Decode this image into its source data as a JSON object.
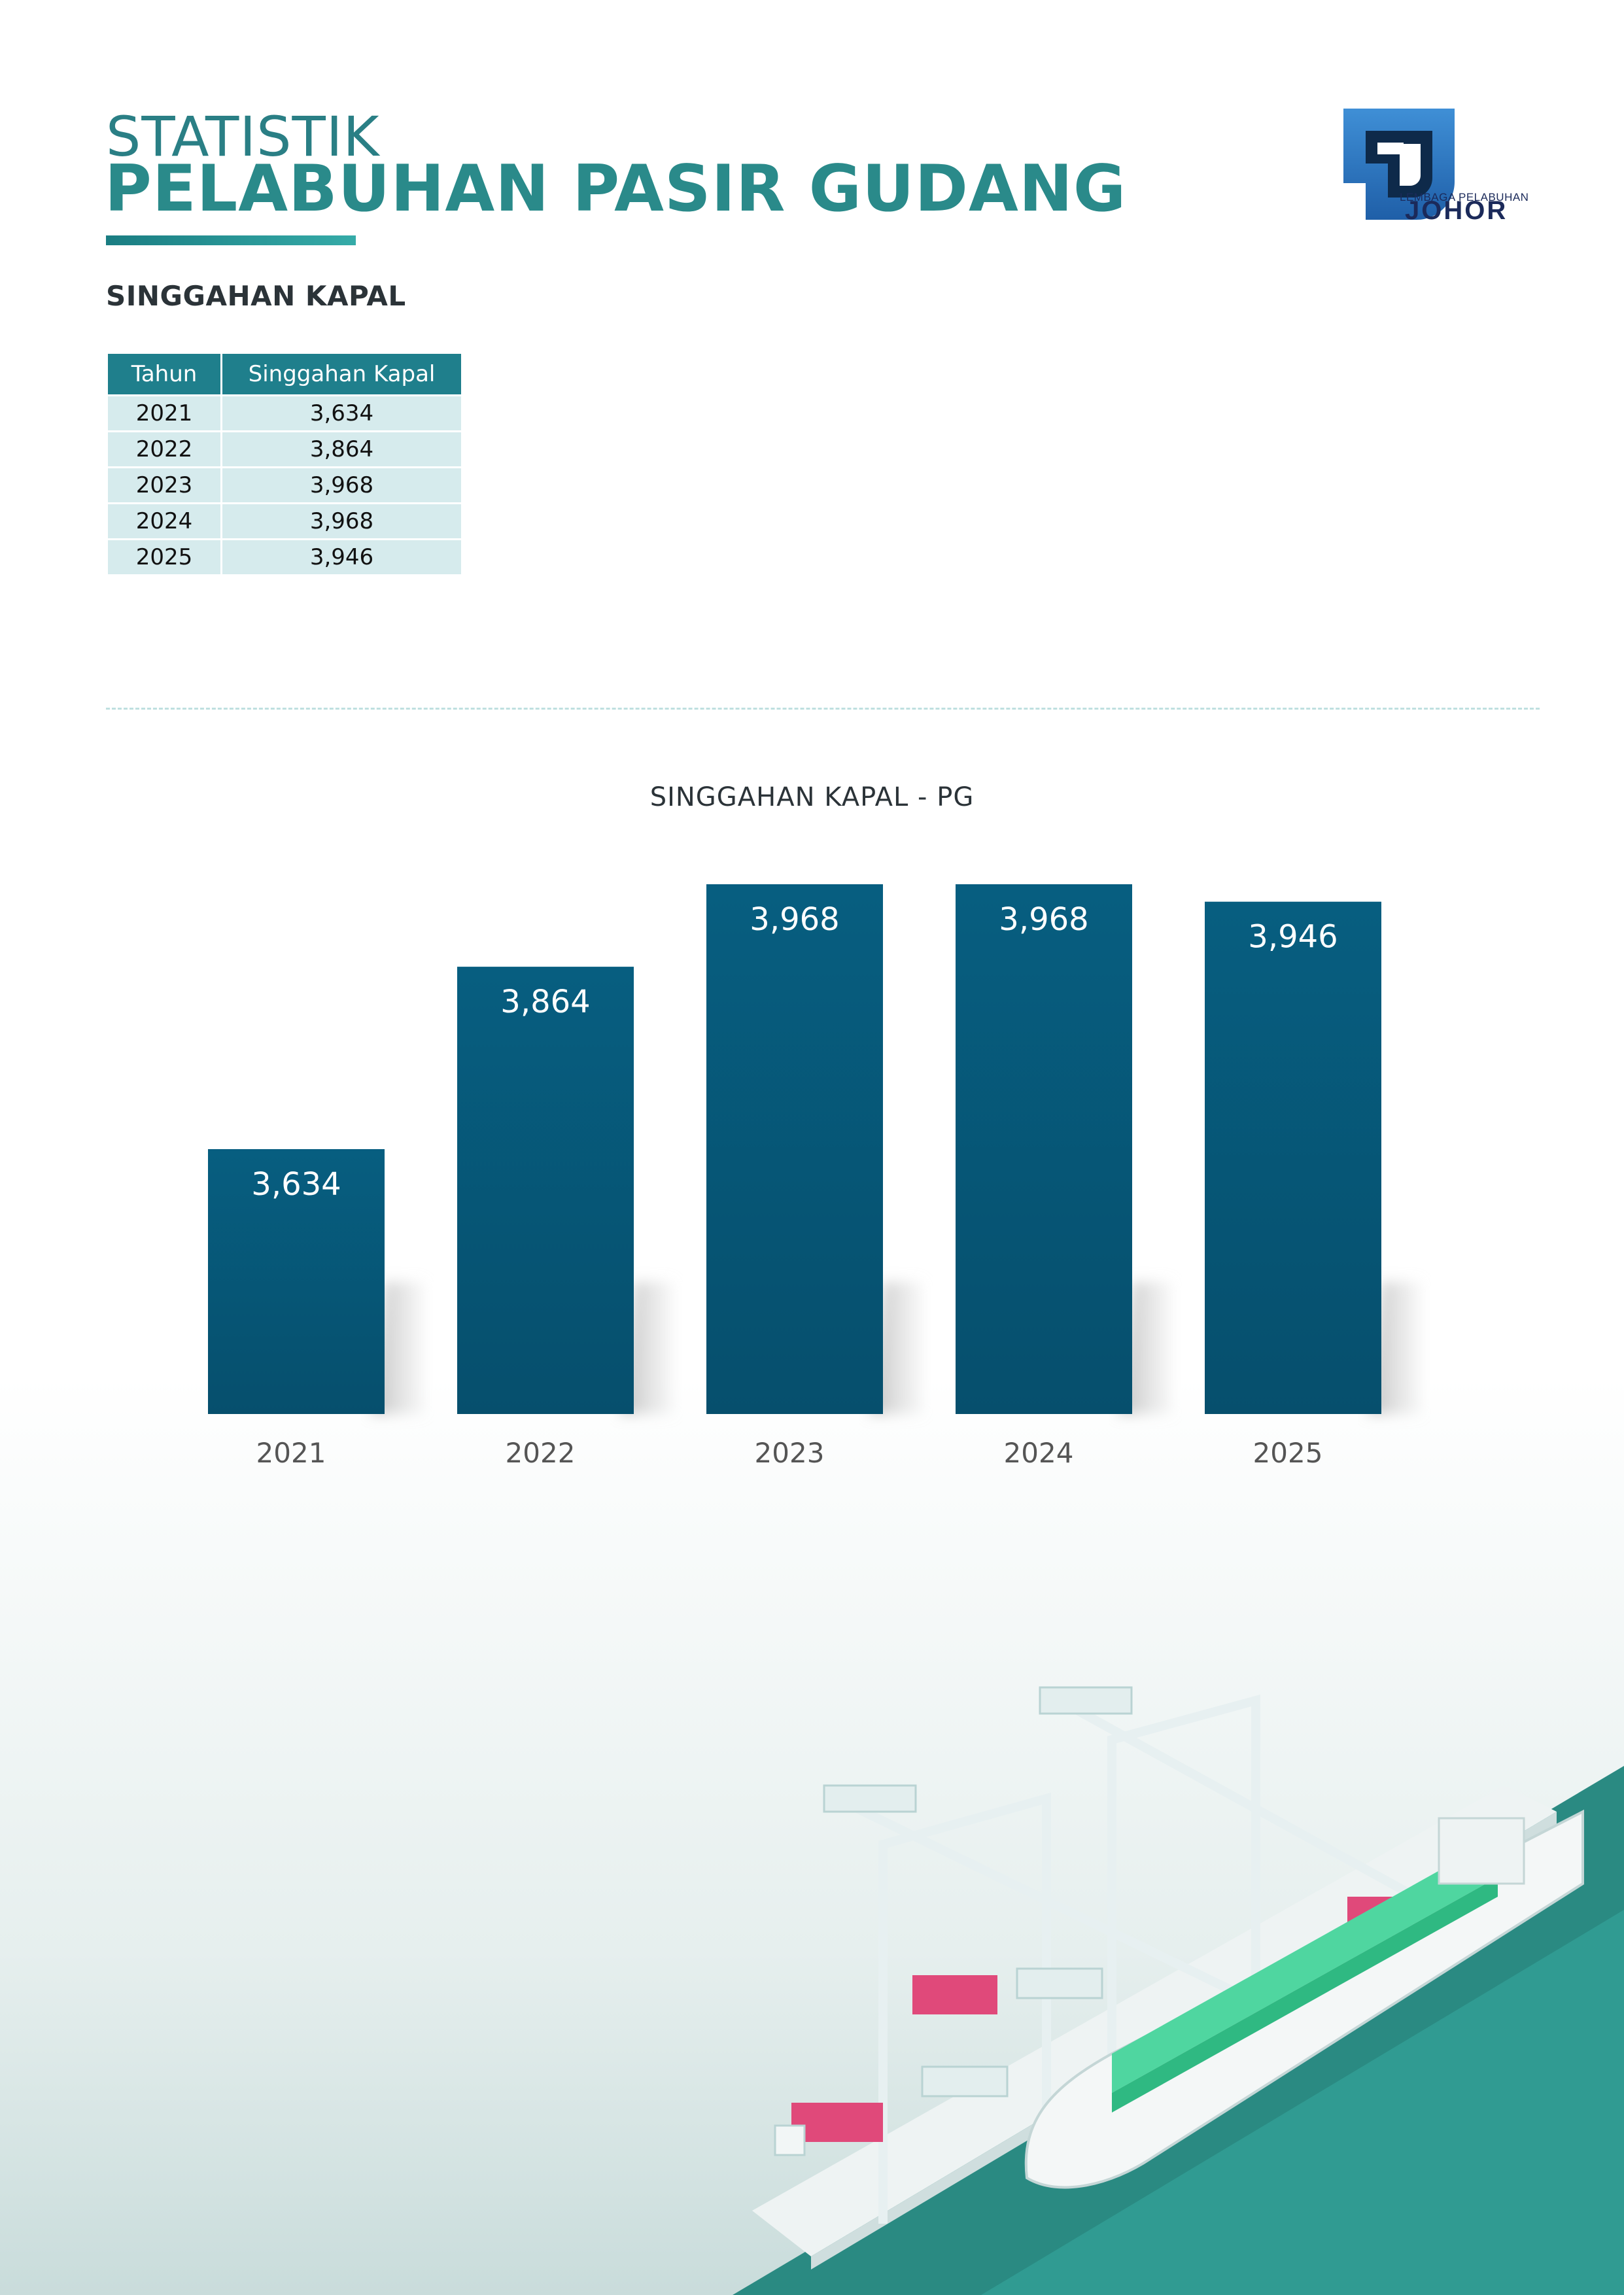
{
  "header": {
    "title_line1": "STATISTIK",
    "title_line2": "PELABUHAN PASIR GUDANG",
    "logo_text_small": "LEMBAGA PELABUHAN",
    "logo_text_big": "JOHOR"
  },
  "section": {
    "heading": "SINGGAHAN KAPAL"
  },
  "table": {
    "headers": [
      "Tahun",
      "Singgahan Kapal"
    ],
    "rows": [
      [
        "2021",
        "3,634"
      ],
      [
        "2022",
        "3,864"
      ],
      [
        "2023",
        "3,968"
      ],
      [
        "2024",
        "3,968"
      ],
      [
        "2025",
        "3,946"
      ]
    ]
  },
  "colors": {
    "accent": "#2a8a8a",
    "bar": "#075e80",
    "table_header": "#1f7f8c",
    "table_cell": "#d6ebed"
  },
  "chart_data": {
    "type": "bar",
    "title": "SINGGAHAN KAPAL - PG",
    "categories": [
      "2021",
      "2022",
      "2023",
      "2024",
      "2025"
    ],
    "values": [
      3634,
      3864,
      3968,
      3968,
      3946
    ],
    "value_labels": [
      "3,634",
      "3,864",
      "3,968",
      "3,968",
      "3,946"
    ],
    "xlabel": "",
    "ylabel": "",
    "ylim": [
      3300,
      3968
    ],
    "grid": false,
    "legend": "none"
  }
}
